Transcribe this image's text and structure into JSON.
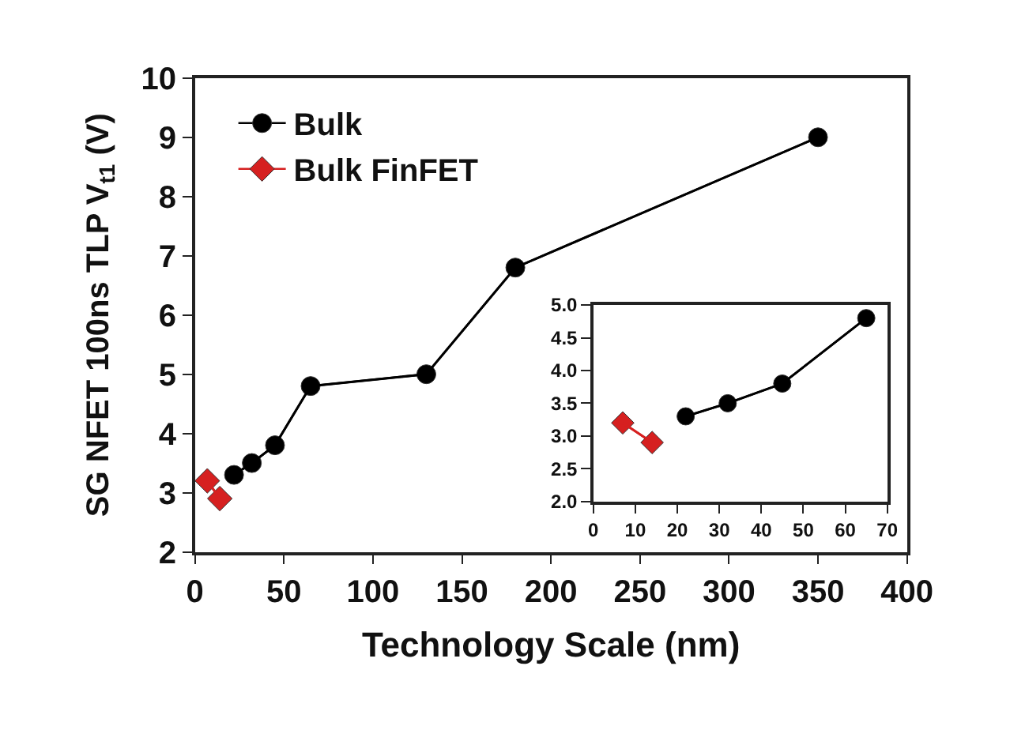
{
  "chart_data": [
    {
      "type": "line",
      "xlabel": "Technology Scale (nm)",
      "ylabel": "SG NFET 100ns TLP V$_{t1}$ (V)",
      "xlim": [
        0,
        400
      ],
      "xticks": [
        0,
        50,
        100,
        150,
        200,
        250,
        300,
        350,
        400
      ],
      "ylim": [
        2,
        10
      ],
      "yticks": [
        2,
        3,
        4,
        5,
        6,
        7,
        8,
        9,
        10
      ],
      "legend": "top left",
      "series": [
        {
          "name": "Bulk",
          "color": "#000000",
          "marker": "circle",
          "x": [
            22,
            32,
            45,
            65,
            130,
            180,
            350
          ],
          "values": [
            3.3,
            3.5,
            3.8,
            4.8,
            5.0,
            6.8,
            9.0
          ]
        },
        {
          "name": "Bulk FinFET",
          "color": "#d62020",
          "marker": "diamond",
          "x": [
            7,
            14
          ],
          "values": [
            3.2,
            2.9
          ]
        }
      ]
    },
    {
      "type": "line",
      "xlim": [
        0,
        70
      ],
      "xticks": [
        0,
        10,
        20,
        30,
        40,
        50,
        60,
        70
      ],
      "ylim": [
        2.0,
        5.0
      ],
      "yticks": [
        {
          "value": 2.0,
          "label": "2.0"
        },
        {
          "value": 2.5,
          "label": "2.5"
        },
        {
          "value": 3.0,
          "label": "3.0"
        },
        {
          "value": 3.5,
          "label": "3.5"
        },
        {
          "value": 4.0,
          "label": "4.0"
        },
        {
          "value": 4.5,
          "label": "4.5"
        },
        {
          "value": 5.0,
          "label": "5.0"
        }
      ],
      "legend": false,
      "series": [
        {
          "color": "#000000",
          "marker": "circle",
          "x": [
            22,
            32,
            45,
            65
          ],
          "values": [
            3.3,
            3.5,
            3.8,
            4.8
          ]
        },
        {
          "color": "#d62020",
          "marker": "diamond",
          "x": [
            7,
            14
          ],
          "values": [
            3.2,
            2.9
          ]
        }
      ]
    }
  ]
}
